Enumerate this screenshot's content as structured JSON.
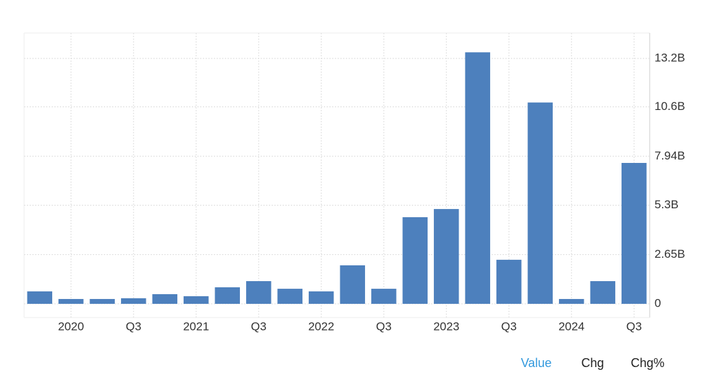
{
  "chart_data": {
    "type": "bar",
    "categories": [
      null,
      "2020",
      null,
      "Q3",
      null,
      "2021",
      null,
      "Q3",
      null,
      "2022",
      null,
      "Q3",
      null,
      "2023",
      null,
      "Q3",
      null,
      "2024",
      null,
      "Q3"
    ],
    "values": [
      0.67,
      0.26,
      0.26,
      0.3,
      0.52,
      0.41,
      0.89,
      1.22,
      0.81,
      0.67,
      2.07,
      0.81,
      4.66,
      5.1,
      13.53,
      2.37,
      10.83,
      0.26,
      1.22,
      7.58
    ],
    "color": "#4d80bd",
    "ylim": [
      -0.74,
      14.57
    ],
    "yticks": [
      0,
      {
        "value": 2.65,
        "label": "2.65B"
      },
      {
        "value": 5.3,
        "label": "5.3B"
      },
      {
        "value": 7.94,
        "label": "7.94B"
      },
      {
        "value": 10.6,
        "label": "10.6B"
      },
      {
        "value": 13.2,
        "label": "13.2B"
      }
    ],
    "grid": true
  },
  "tabs": [
    "Value",
    "Chg",
    "Chg%"
  ],
  "active_tab": 0
}
